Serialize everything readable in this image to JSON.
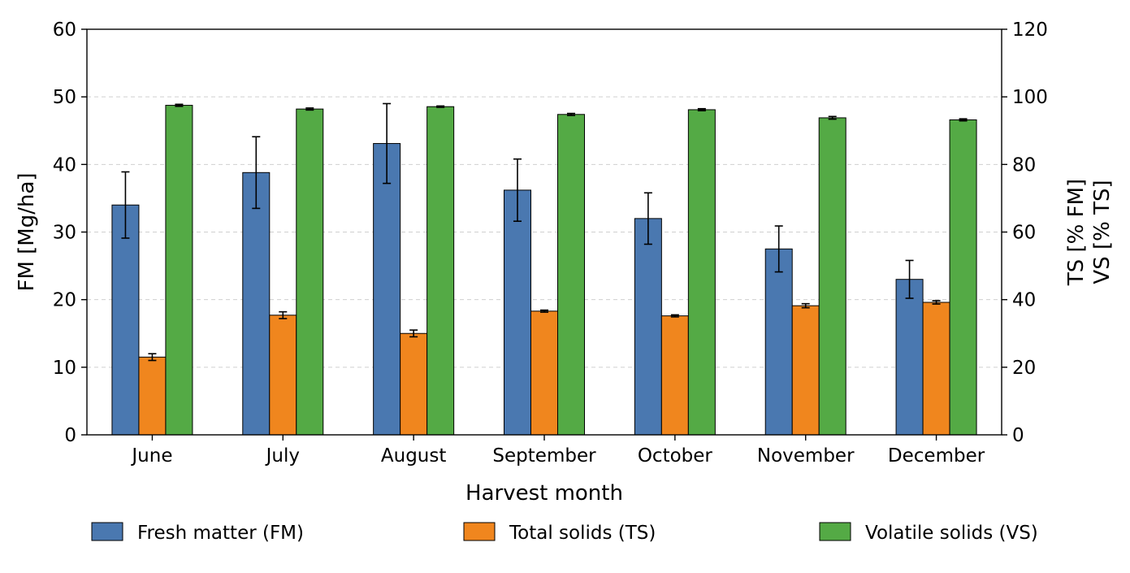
{
  "chart_data": {
    "type": "bar",
    "categories": [
      "June",
      "July",
      "August",
      "September",
      "October",
      "November",
      "December"
    ],
    "xlabel": "Harvest month",
    "ylabel_left": "FM [Mg/ha]",
    "ylabel_right_line1": "TS [% FM]",
    "ylabel_right_line2": "VS [% TS]",
    "ylim_left": [
      0,
      60
    ],
    "ylim_right": [
      0,
      120
    ],
    "yticks_left": [
      "0",
      "10",
      "20",
      "30",
      "40",
      "50",
      "60"
    ],
    "yticks_right": [
      "0",
      "20",
      "40",
      "60",
      "80",
      "100",
      "120"
    ],
    "grid": "horizontal dashed",
    "legend_position": "bottom",
    "series": [
      {
        "name": "Fresh matter (FM)",
        "axis": "left",
        "color": "#4a78b0",
        "values": [
          34.0,
          38.8,
          43.1,
          36.2,
          32.0,
          27.5,
          23.0
        ],
        "errors": [
          4.9,
          5.3,
          5.9,
          4.6,
          3.8,
          3.4,
          2.8
        ]
      },
      {
        "name": "Total solids (TS)",
        "axis": "right",
        "color": "#f0861e",
        "values": [
          23.0,
          35.4,
          30.0,
          36.6,
          35.2,
          38.2,
          39.2
        ],
        "errors": [
          1.0,
          1.0,
          1.0,
          0.3,
          0.3,
          0.6,
          0.5
        ]
      },
      {
        "name": "Volatile solids (VS)",
        "axis": "right",
        "color": "#54aa45",
        "values": [
          97.5,
          96.4,
          97.1,
          94.8,
          96.2,
          93.8,
          93.2
        ],
        "errors": [
          0.3,
          0.3,
          0.2,
          0.3,
          0.3,
          0.4,
          0.3
        ]
      }
    ]
  }
}
